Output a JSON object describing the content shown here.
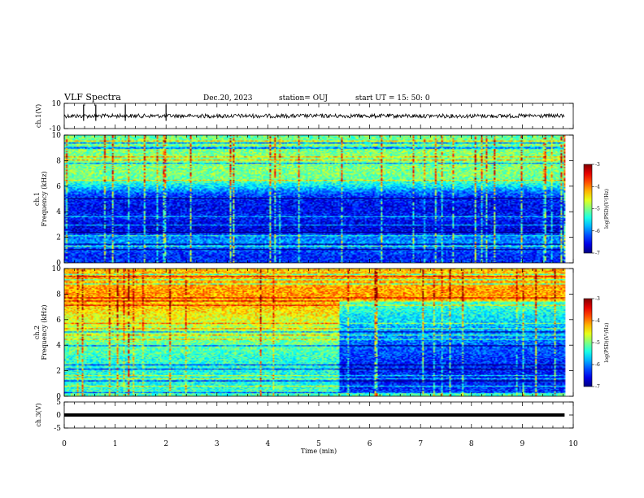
{
  "header": {
    "title": "VLF Spectra",
    "date": "Dec.20, 2023",
    "station": "station= OUJ",
    "start": "start  UT =   15: 50: 0"
  },
  "chart_data": [
    {
      "type": "line",
      "name": "ch1-waveform",
      "ylabel": "ch.1(V)",
      "ylim": [
        -10,
        10
      ],
      "yticks": [
        "10",
        "-10"
      ],
      "xlim": [
        0,
        10
      ],
      "baseline": 0,
      "spikes_min": [
        0.38,
        0.62,
        1.2,
        2.0
      ]
    },
    {
      "type": "heatmap",
      "name": "ch1-spectrogram",
      "ylabel": "ch.1\nFrequency (kHz)",
      "ylim": [
        0,
        10
      ],
      "yticks": [
        "0",
        "2",
        "4",
        "6",
        "8",
        "10"
      ],
      "xlim": [
        0,
        10
      ],
      "data_end_min": 9.83,
      "colorbar": {
        "label": "log(PSD)(V²/Hz)",
        "range": [
          -7,
          -3
        ],
        "ticks": [
          "-3",
          "-4",
          "-5",
          "-6",
          "-7"
        ]
      },
      "profile_khz_logpsd": [
        [
          0,
          -6.3
        ],
        [
          0.5,
          -6.4
        ],
        [
          1,
          -6.2
        ],
        [
          1.5,
          -5.9
        ],
        [
          2,
          -6.0
        ],
        [
          2.5,
          -6.6
        ],
        [
          3,
          -6.6
        ],
        [
          3.5,
          -6.4
        ],
        [
          4,
          -6.5
        ],
        [
          4.5,
          -6.5
        ],
        [
          5,
          -6.4
        ],
        [
          5.5,
          -6.1
        ],
        [
          6,
          -5.6
        ],
        [
          6.5,
          -5.1
        ],
        [
          7,
          -5.0
        ],
        [
          8,
          -5.0
        ],
        [
          9,
          -5.0
        ],
        [
          10,
          -5.1
        ]
      ]
    },
    {
      "type": "heatmap",
      "name": "ch2-spectrogram",
      "ylabel": "ch.2\nFrequency (kHz)",
      "ylim": [
        0,
        10
      ],
      "yticks": [
        "0",
        "2",
        "4",
        "6",
        "8",
        "10"
      ],
      "xlim": [
        0,
        10
      ],
      "data_end_min": 9.83,
      "quiet_after_min": 5.4,
      "colorbar": {
        "label": "log(PSD)(V²/Hz)",
        "range": [
          -7,
          -3
        ],
        "ticks": [
          "-3",
          "-4",
          "-5",
          "-6",
          "-7"
        ]
      },
      "profile_khz_logpsd": [
        [
          0,
          -5.2
        ],
        [
          1,
          -5.4
        ],
        [
          2,
          -5.4
        ],
        [
          3,
          -5.3
        ],
        [
          4,
          -5.1
        ],
        [
          5,
          -4.9
        ],
        [
          6,
          -4.6
        ],
        [
          7,
          -4.3
        ],
        [
          8,
          -4.1
        ],
        [
          9,
          -4.2
        ],
        [
          10,
          -4.3
        ]
      ]
    },
    {
      "type": "line",
      "name": "ch3-waveform",
      "ylabel": "ch.3(V)",
      "ylim": [
        -5,
        5
      ],
      "yticks": [
        "5",
        "0",
        "-5"
      ],
      "xlim": [
        0,
        10
      ],
      "baseline": 0
    }
  ],
  "xaxis": {
    "label": "Time (min)",
    "ticks": [
      "0",
      "1",
      "2",
      "3",
      "4",
      "5",
      "6",
      "7",
      "8",
      "9",
      "10"
    ]
  }
}
